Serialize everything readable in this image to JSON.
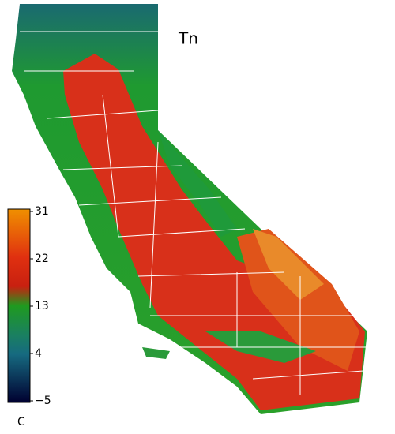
{
  "map": {
    "title": "Tn",
    "colorbar": {
      "unit": "C",
      "lim": [
        -5,
        31
      ],
      "ticks": [
        31,
        22,
        13,
        4,
        {
          "value": -5,
          "label": "−5"
        }
      ]
    }
  }
}
